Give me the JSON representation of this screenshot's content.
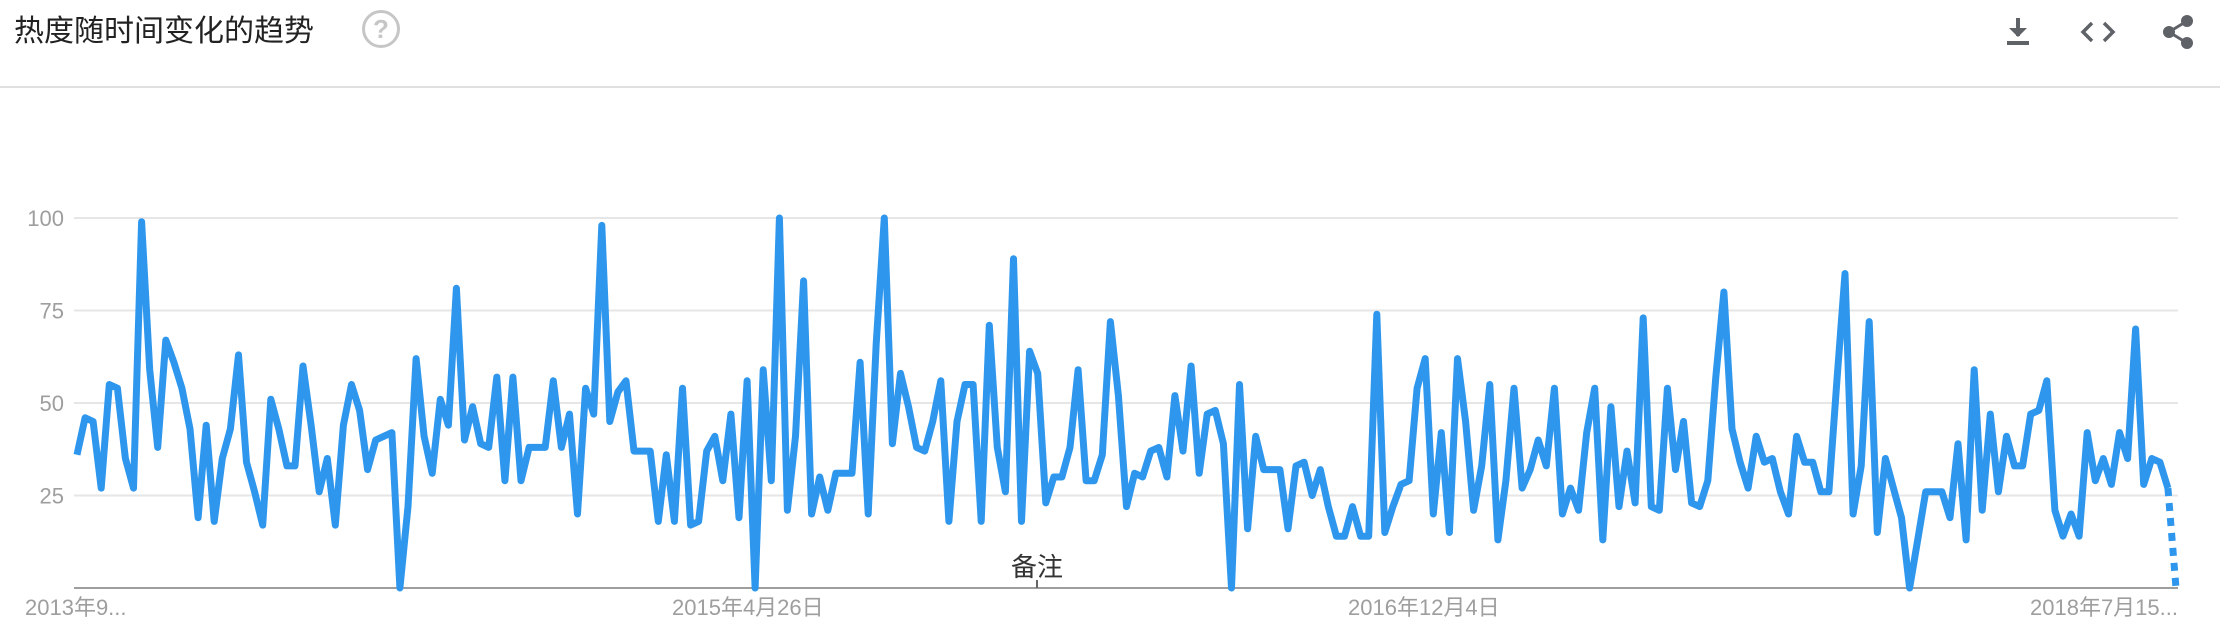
{
  "header": {
    "title": "热度随时间变化的趋势",
    "help_glyph": "?",
    "icons": [
      "download-icon",
      "embed-code-icon",
      "share-icon"
    ]
  },
  "colors": {
    "line": "#2e97ed",
    "grid": "#e6e6e6",
    "axis": "#9e9e9e",
    "label": "#9e9e9e",
    "icon": "#5f6368"
  },
  "chart_data": {
    "type": "line",
    "title": "",
    "xlabel": "",
    "ylabel": "",
    "ylim": [
      0,
      100
    ],
    "yticks": [
      100,
      75,
      50,
      25
    ],
    "grid": true,
    "x_tick_labels": [
      "2013年9...",
      "2015年4月26日",
      "2016年12月4日",
      "2018年7月15..."
    ],
    "annotation": "备注",
    "partial_last_point": true,
    "series": [
      {
        "values": [
          36,
          46,
          45,
          27,
          55,
          54,
          35,
          27,
          99,
          59,
          38,
          67,
          61,
          54,
          43,
          19,
          44,
          18,
          35,
          43,
          63,
          34,
          26,
          17,
          51,
          43,
          33,
          33,
          60,
          44,
          26,
          35,
          17,
          44,
          55,
          48,
          32,
          40,
          41,
          42,
          0,
          22,
          62,
          41,
          31,
          51,
          44,
          81,
          40,
          49,
          39,
          38,
          57,
          29,
          57,
          29,
          38,
          38,
          38,
          56,
          38,
          47,
          20,
          54,
          47,
          98,
          45,
          53,
          56,
          37,
          37,
          37,
          18,
          36,
          18,
          54,
          17,
          18,
          37,
          41,
          29,
          47,
          19,
          56,
          0,
          59,
          29,
          100,
          21,
          41,
          83,
          20,
          30,
          21,
          31,
          31,
          31,
          61,
          20,
          66,
          100,
          39,
          58,
          49,
          38,
          37,
          45,
          56,
          18,
          45,
          55,
          55,
          18,
          71,
          38,
          26,
          89,
          18,
          64,
          58,
          23,
          30,
          30,
          38,
          59,
          29,
          29,
          36,
          72,
          52,
          22,
          31,
          30,
          37,
          38,
          30,
          52,
          37,
          60,
          31,
          47,
          48,
          39,
          0,
          55,
          16,
          41,
          32,
          32,
          32,
          16,
          33,
          34,
          25,
          32,
          22,
          14,
          14,
          22,
          14,
          14,
          74,
          15,
          22,
          28,
          29,
          54,
          62,
          20,
          42,
          15,
          62,
          45,
          21,
          33,
          55,
          13,
          29,
          54,
          27,
          32,
          40,
          33,
          54,
          20,
          27,
          21,
          42,
          54,
          13,
          49,
          22,
          37,
          23,
          73,
          22,
          21,
          54,
          32,
          45,
          23,
          22,
          29,
          57,
          80,
          43,
          34,
          27,
          41,
          34,
          35,
          26,
          20,
          41,
          34,
          34,
          26,
          26,
          56,
          85,
          20,
          33,
          72,
          15,
          35,
          27,
          19,
          0,
          13,
          26,
          26,
          26,
          19,
          39,
          13,
          59,
          21,
          47,
          26,
          41,
          33,
          33,
          47,
          48,
          56,
          21,
          14,
          20,
          14,
          42,
          29,
          35,
          28,
          42,
          35,
          70,
          28,
          35,
          34,
          27,
          0
        ]
      }
    ]
  }
}
